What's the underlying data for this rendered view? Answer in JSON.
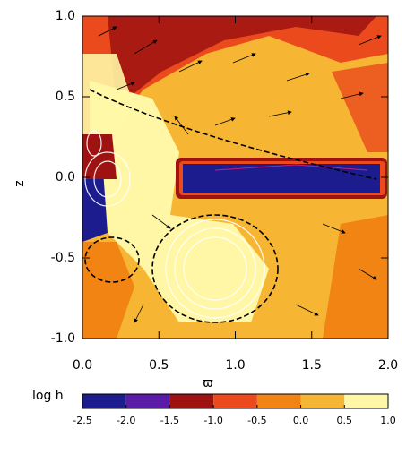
{
  "chart_data": {
    "type": "contour",
    "xlabel": "ϖ",
    "ylabel": "z",
    "xlim": [
      0,
      2
    ],
    "ylim": [
      -1,
      1
    ],
    "xticks": [
      {
        "value": 0,
        "label": "0.0"
      },
      {
        "value": 0.5,
        "label": "0.5"
      },
      {
        "value": 1,
        "label": "1.0"
      },
      {
        "value": 1.5,
        "label": "1.5"
      },
      {
        "value": 2,
        "label": "2.0"
      }
    ],
    "yticks": [
      {
        "value": -1,
        "label": "-1.0"
      },
      {
        "value": -0.5,
        "label": "-0.5"
      },
      {
        "value": 0,
        "label": "0.0"
      },
      {
        "value": 0.5,
        "label": "0.5"
      },
      {
        "value": 1,
        "label": "1.0"
      }
    ],
    "colorbar": {
      "label": "log h",
      "ticks": [
        {
          "value": -2.5,
          "label": "-2.5"
        },
        {
          "value": -2,
          "label": "-2.0"
        },
        {
          "value": -1.5,
          "label": "-1.5"
        },
        {
          "value": -1,
          "label": "-1.0"
        },
        {
          "value": -0.5,
          "label": "-0.5"
        },
        {
          "value": 0,
          "label": "0.0"
        },
        {
          "value": 0.5,
          "label": "0.5"
        },
        {
          "value": 1,
          "label": "1.0"
        }
      ],
      "colors": [
        "#1c1c8e",
        "#5a1ca8",
        "#9e1212",
        "#ea4a1c",
        "#f28414",
        "#f6b634",
        "#fff7a6"
      ]
    }
  }
}
